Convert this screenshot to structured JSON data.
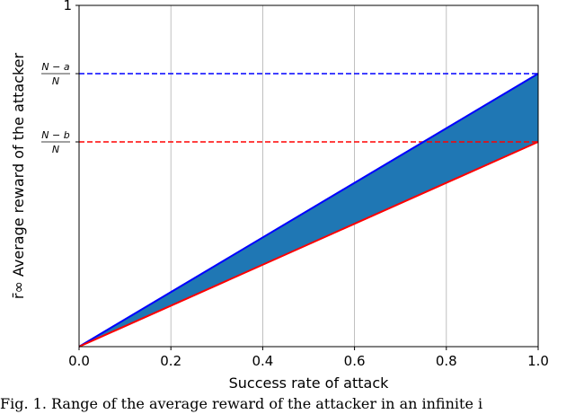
{
  "chart_data": {
    "type": "area",
    "ylabel": "r̄∞ Average reward of the attacker",
    "xlabel": "Success rate of attack",
    "xlim": [
      0,
      1
    ],
    "ylim": [
      0,
      1
    ],
    "x_ticks": [
      0.0,
      0.2,
      0.4,
      0.6,
      0.8,
      1.0
    ],
    "x_tick_labels": [
      "0.0",
      "0.2",
      "0.4",
      "0.6",
      "0.8",
      "1.0"
    ],
    "y_tick_top": "1",
    "grid": "vertical",
    "colors": {
      "blue": "#0000ff",
      "red": "#ff0000",
      "fill": "#1f77b4"
    },
    "series": [
      {
        "color": "blue",
        "style": "solid",
        "x": [
          0,
          1
        ],
        "y": [
          0,
          0.8
        ]
      },
      {
        "color": "red",
        "style": "solid",
        "x": [
          0,
          1
        ],
        "y": [
          0,
          0.6
        ]
      }
    ],
    "reference_lines": [
      {
        "y": 0.8,
        "color": "blue",
        "style": "dashed",
        "label_num": "N − a",
        "label_den": "N"
      },
      {
        "y": 0.6,
        "color": "red",
        "style": "dashed",
        "label_num": "N − b",
        "label_den": "N"
      }
    ],
    "shaded_region": "between blue and red lines"
  },
  "caption": "Fig. 1. Range of the average reward of the attacker in an infinite i"
}
